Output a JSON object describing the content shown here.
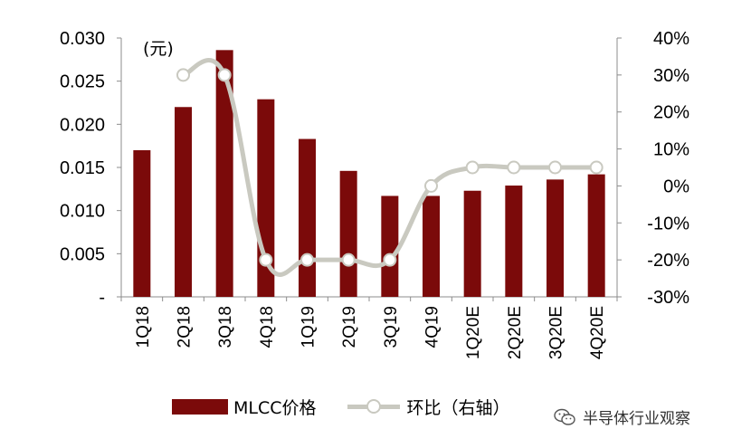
{
  "chart_data": {
    "type": "bar+line",
    "unit_label": "(元)",
    "categories": [
      "1Q18",
      "2Q18",
      "3Q18",
      "4Q18",
      "1Q19",
      "2Q19",
      "3Q19",
      "4Q19",
      "1Q20E",
      "2Q20E",
      "3Q20E",
      "4Q20E"
    ],
    "series": [
      {
        "name": "MLCC价格",
        "type": "bar",
        "axis": "left",
        "color": "#7B0A0A",
        "values": [
          0.017,
          0.022,
          0.0286,
          0.0229,
          0.0183,
          0.0146,
          0.0117,
          0.0117,
          0.0123,
          0.0129,
          0.0136,
          0.0142
        ]
      },
      {
        "name": "环比（右轴）",
        "type": "line",
        "axis": "right",
        "color": "#C9C9C0",
        "values": [
          null,
          0.3,
          0.3,
          -0.2,
          -0.2,
          -0.2,
          -0.2,
          0.0,
          0.05,
          0.05,
          0.05,
          0.05
        ]
      }
    ],
    "y_left": {
      "min": 0,
      "max": 0.03,
      "ticks": [
        "-",
        "0.005",
        "0.010",
        "0.015",
        "0.020",
        "0.025",
        "0.030"
      ]
    },
    "y_right": {
      "min": -0.3,
      "max": 0.4,
      "ticks": [
        "-30%",
        "-20%",
        "-10%",
        "0%",
        "10%",
        "20%",
        "30%",
        "40%"
      ]
    },
    "grid": false,
    "legend_position": "bottom"
  },
  "watermark": {
    "text": "半导体行业观察",
    "icon": "wechat-icon"
  }
}
